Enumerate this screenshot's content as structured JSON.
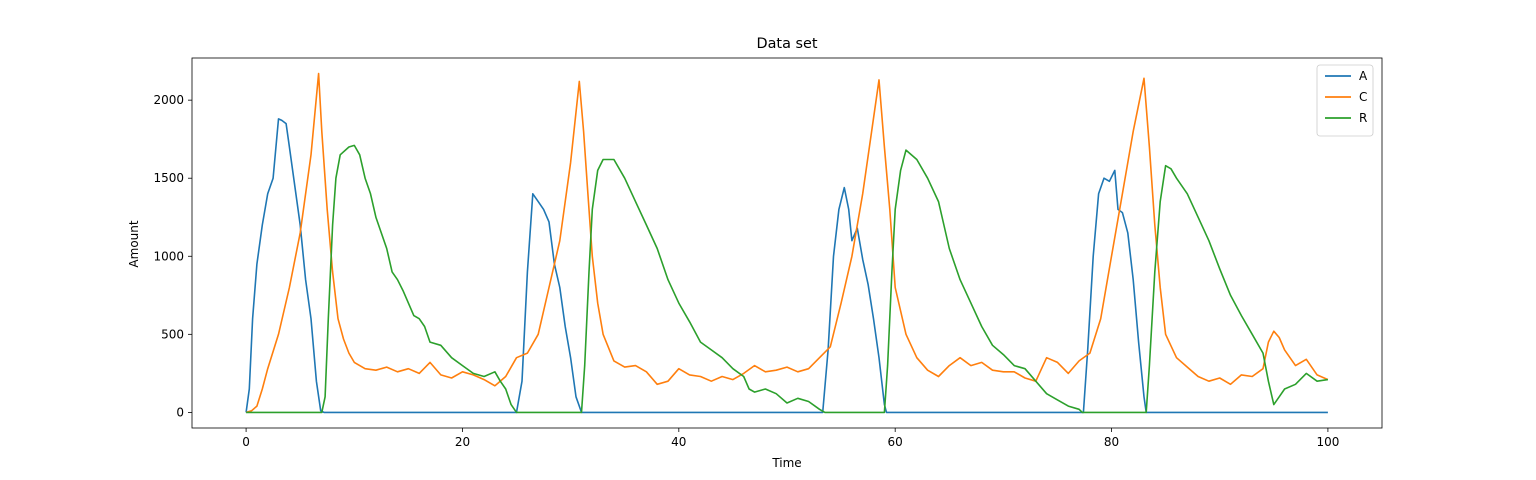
{
  "chart_data": {
    "type": "line",
    "title": "Data set",
    "xlabel": "Time",
    "ylabel": "Amount",
    "xlim": [
      -5,
      105
    ],
    "ylim": [
      -100,
      2270
    ],
    "xticks": [
      0,
      20,
      40,
      60,
      80,
      100
    ],
    "yticks": [
      0,
      500,
      1000,
      1500,
      2000
    ],
    "grid": false,
    "legend_position": "top-right",
    "series": [
      {
        "name": "A",
        "color": "#1f77b4",
        "points": [
          [
            0,
            0
          ],
          [
            0.3,
            150
          ],
          [
            0.6,
            600
          ],
          [
            1,
            950
          ],
          [
            1.5,
            1200
          ],
          [
            2,
            1400
          ],
          [
            2.5,
            1500
          ],
          [
            3,
            1880
          ],
          [
            3.3,
            1870
          ],
          [
            3.7,
            1850
          ],
          [
            4,
            1700
          ],
          [
            4.5,
            1450
          ],
          [
            5,
            1200
          ],
          [
            5.5,
            850
          ],
          [
            6,
            600
          ],
          [
            6.5,
            200
          ],
          [
            6.9,
            10
          ],
          [
            7.2,
            0
          ],
          [
            25,
            0
          ],
          [
            25.5,
            200
          ],
          [
            26,
            900
          ],
          [
            26.5,
            1400
          ],
          [
            27,
            1350
          ],
          [
            27.5,
            1300
          ],
          [
            28,
            1220
          ],
          [
            28.5,
            950
          ],
          [
            29,
            800
          ],
          [
            29.5,
            550
          ],
          [
            30,
            350
          ],
          [
            30.5,
            100
          ],
          [
            31,
            0
          ],
          [
            53.3,
            0
          ],
          [
            53.8,
            400
          ],
          [
            54.3,
            1000
          ],
          [
            54.8,
            1300
          ],
          [
            55.3,
            1440
          ],
          [
            55.7,
            1300
          ],
          [
            56,
            1100
          ],
          [
            56.5,
            1180
          ],
          [
            57,
            980
          ],
          [
            57.5,
            820
          ],
          [
            58,
            600
          ],
          [
            58.5,
            350
          ],
          [
            59,
            50
          ],
          [
            59.2,
            0
          ],
          [
            77.4,
            0
          ],
          [
            77.8,
            400
          ],
          [
            78.3,
            1000
          ],
          [
            78.8,
            1400
          ],
          [
            79.3,
            1500
          ],
          [
            79.8,
            1480
          ],
          [
            80.3,
            1550
          ],
          [
            80.6,
            1300
          ],
          [
            81,
            1280
          ],
          [
            81.5,
            1150
          ],
          [
            82,
            850
          ],
          [
            82.5,
            450
          ],
          [
            83,
            100
          ],
          [
            83.2,
            0
          ],
          [
            100,
            0
          ]
        ]
      },
      {
        "name": "C",
        "color": "#ff7f0e",
        "points": [
          [
            0,
            0
          ],
          [
            0.5,
            10
          ],
          [
            1,
            40
          ],
          [
            1.5,
            150
          ],
          [
            2,
            280
          ],
          [
            3,
            500
          ],
          [
            4,
            800
          ],
          [
            5,
            1150
          ],
          [
            6,
            1650
          ],
          [
            6.7,
            2170
          ],
          [
            7,
            1800
          ],
          [
            7.5,
            1300
          ],
          [
            8,
            900
          ],
          [
            8.5,
            600
          ],
          [
            9,
            470
          ],
          [
            9.5,
            380
          ],
          [
            10,
            320
          ],
          [
            11,
            280
          ],
          [
            12,
            270
          ],
          [
            13,
            290
          ],
          [
            14,
            260
          ],
          [
            15,
            280
          ],
          [
            16,
            250
          ],
          [
            17,
            320
          ],
          [
            18,
            240
          ],
          [
            19,
            220
          ],
          [
            20,
            260
          ],
          [
            21,
            240
          ],
          [
            22,
            210
          ],
          [
            23,
            170
          ],
          [
            24,
            230
          ],
          [
            25,
            350
          ],
          [
            26,
            380
          ],
          [
            27,
            500
          ],
          [
            28,
            800
          ],
          [
            29,
            1100
          ],
          [
            30,
            1600
          ],
          [
            30.8,
            2120
          ],
          [
            31.2,
            1800
          ],
          [
            31.6,
            1400
          ],
          [
            32,
            1000
          ],
          [
            32.5,
            700
          ],
          [
            33,
            500
          ],
          [
            34,
            330
          ],
          [
            35,
            290
          ],
          [
            36,
            300
          ],
          [
            37,
            260
          ],
          [
            38,
            180
          ],
          [
            39,
            200
          ],
          [
            40,
            280
          ],
          [
            41,
            240
          ],
          [
            42,
            230
          ],
          [
            43,
            200
          ],
          [
            44,
            230
          ],
          [
            45,
            210
          ],
          [
            46,
            250
          ],
          [
            47,
            300
          ],
          [
            48,
            260
          ],
          [
            49,
            270
          ],
          [
            50,
            290
          ],
          [
            51,
            260
          ],
          [
            52,
            280
          ],
          [
            53,
            350
          ],
          [
            54,
            420
          ],
          [
            55,
            700
          ],
          [
            56,
            1000
          ],
          [
            57,
            1400
          ],
          [
            58.5,
            2130
          ],
          [
            59,
            1700
          ],
          [
            59.5,
            1300
          ],
          [
            60,
            800
          ],
          [
            61,
            500
          ],
          [
            62,
            350
          ],
          [
            63,
            270
          ],
          [
            64,
            230
          ],
          [
            65,
            300
          ],
          [
            66,
            350
          ],
          [
            67,
            300
          ],
          [
            68,
            320
          ],
          [
            69,
            270
          ],
          [
            70,
            260
          ],
          [
            71,
            260
          ],
          [
            72,
            220
          ],
          [
            73,
            200
          ],
          [
            74,
            350
          ],
          [
            75,
            320
          ],
          [
            76,
            250
          ],
          [
            77,
            330
          ],
          [
            78,
            380
          ],
          [
            79,
            600
          ],
          [
            80,
            1000
          ],
          [
            81,
            1400
          ],
          [
            82,
            1800
          ],
          [
            83,
            2140
          ],
          [
            83.5,
            1700
          ],
          [
            84,
            1200
          ],
          [
            84.5,
            800
          ],
          [
            85,
            500
          ],
          [
            86,
            350
          ],
          [
            87,
            290
          ],
          [
            88,
            230
          ],
          [
            89,
            200
          ],
          [
            90,
            220
          ],
          [
            91,
            180
          ],
          [
            92,
            240
          ],
          [
            93,
            230
          ],
          [
            94,
            280
          ],
          [
            94.5,
            450
          ],
          [
            95,
            520
          ],
          [
            95.5,
            480
          ],
          [
            96,
            400
          ],
          [
            97,
            300
          ],
          [
            98,
            340
          ],
          [
            99,
            240
          ],
          [
            100,
            210
          ]
        ]
      },
      {
        "name": "R",
        "color": "#2ca02c",
        "points": [
          [
            0,
            0
          ],
          [
            5,
            0
          ],
          [
            7,
            0
          ],
          [
            7.3,
            100
          ],
          [
            7.6,
            600
          ],
          [
            8,
            1200
          ],
          [
            8.3,
            1500
          ],
          [
            8.7,
            1650
          ],
          [
            9.5,
            1700
          ],
          [
            10,
            1710
          ],
          [
            10.5,
            1650
          ],
          [
            11,
            1500
          ],
          [
            11.5,
            1400
          ],
          [
            12,
            1250
          ],
          [
            12.5,
            1150
          ],
          [
            13,
            1050
          ],
          [
            13.5,
            900
          ],
          [
            14,
            850
          ],
          [
            14.5,
            780
          ],
          [
            15,
            700
          ],
          [
            15.5,
            620
          ],
          [
            16,
            600
          ],
          [
            16.5,
            550
          ],
          [
            17,
            450
          ],
          [
            18,
            430
          ],
          [
            19,
            350
          ],
          [
            20,
            300
          ],
          [
            21,
            250
          ],
          [
            22,
            230
          ],
          [
            23,
            260
          ],
          [
            23.5,
            200
          ],
          [
            24,
            150
          ],
          [
            24.5,
            50
          ],
          [
            25,
            0
          ],
          [
            31,
            0
          ],
          [
            31.3,
            300
          ],
          [
            31.7,
            900
          ],
          [
            32,
            1300
          ],
          [
            32.5,
            1550
          ],
          [
            33,
            1620
          ],
          [
            34,
            1620
          ],
          [
            35,
            1500
          ],
          [
            36,
            1350
          ],
          [
            37,
            1200
          ],
          [
            38,
            1050
          ],
          [
            39,
            850
          ],
          [
            40,
            700
          ],
          [
            41,
            580
          ],
          [
            42,
            450
          ],
          [
            43,
            400
          ],
          [
            44,
            350
          ],
          [
            45,
            280
          ],
          [
            46,
            230
          ],
          [
            46.5,
            150
          ],
          [
            47,
            130
          ],
          [
            48,
            150
          ],
          [
            49,
            120
          ],
          [
            50,
            60
          ],
          [
            51,
            90
          ],
          [
            52,
            70
          ],
          [
            53,
            20
          ],
          [
            53.5,
            0
          ],
          [
            59,
            0
          ],
          [
            59.3,
            300
          ],
          [
            59.7,
            900
          ],
          [
            60,
            1300
          ],
          [
            60.5,
            1550
          ],
          [
            61,
            1680
          ],
          [
            62,
            1620
          ],
          [
            63,
            1500
          ],
          [
            64,
            1350
          ],
          [
            64.5,
            1200
          ],
          [
            65,
            1050
          ],
          [
            66,
            850
          ],
          [
            67,
            700
          ],
          [
            68,
            550
          ],
          [
            69,
            430
          ],
          [
            70,
            370
          ],
          [
            71,
            300
          ],
          [
            72,
            280
          ],
          [
            73,
            200
          ],
          [
            74,
            120
          ],
          [
            75,
            80
          ],
          [
            76,
            40
          ],
          [
            77,
            20
          ],
          [
            77.3,
            0
          ],
          [
            83.2,
            0
          ],
          [
            83.5,
            300
          ],
          [
            84,
            900
          ],
          [
            84.5,
            1350
          ],
          [
            85,
            1580
          ],
          [
            85.5,
            1560
          ],
          [
            86,
            1500
          ],
          [
            87,
            1400
          ],
          [
            88,
            1250
          ],
          [
            89,
            1100
          ],
          [
            90,
            920
          ],
          [
            91,
            750
          ],
          [
            92,
            620
          ],
          [
            93,
            500
          ],
          [
            94,
            380
          ],
          [
            94.5,
            200
          ],
          [
            95,
            50
          ],
          [
            95.5,
            100
          ],
          [
            96,
            150
          ],
          [
            97,
            180
          ],
          [
            98,
            250
          ],
          [
            99,
            200
          ],
          [
            100,
            210
          ]
        ]
      }
    ]
  }
}
